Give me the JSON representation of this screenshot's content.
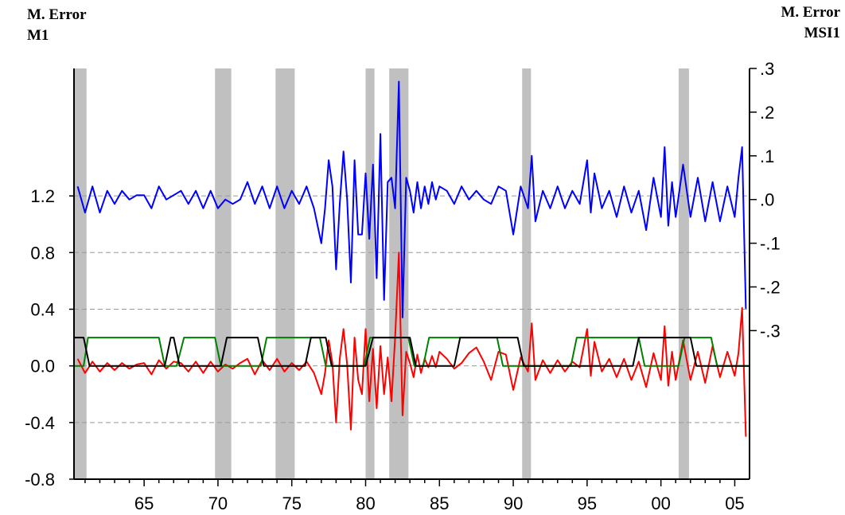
{
  "chart_data": {
    "type": "line",
    "left_axis_title": [
      "M. Error",
      "M1"
    ],
    "right_axis_title": [
      "M. Error",
      "MSI1"
    ],
    "x_ticks": [
      {
        "label": "65",
        "value": 1965
      },
      {
        "label": "70",
        "value": 1970
      },
      {
        "label": "75",
        "value": 1975
      },
      {
        "label": "80",
        "value": 1980
      },
      {
        "label": "85",
        "value": 1985
      },
      {
        "label": "90",
        "value": 1990
      },
      {
        "label": "95",
        "value": 1995
      },
      {
        "label": "00",
        "value": 2000
      },
      {
        "label": "05",
        "value": 2005
      }
    ],
    "xlim": [
      1960.25,
      2006.0
    ],
    "left_axis": {
      "ylim": [
        -0.8,
        2.1
      ],
      "tick_labels": [
        "1.2",
        "0.8",
        "0.4",
        "0.0",
        "-0.4",
        "-0.8"
      ],
      "tick_values": [
        1.2,
        0.8,
        0.4,
        0.0,
        -0.4,
        -0.8
      ]
    },
    "right_axis": {
      "ylim": [
        -0.64,
        0.3
      ],
      "tick_labels": [
        ".3",
        ".2",
        ".1",
        ".0",
        "-.1",
        "-.2",
        "-.3"
      ],
      "tick_values": [
        0.3,
        0.2,
        0.1,
        0.0,
        -0.1,
        -0.2,
        -0.3
      ]
    },
    "grid": "horizontal dashed at left axis ticks",
    "recession_bands": [
      [
        1960.3,
        1961.1
      ],
      [
        1969.8,
        1970.9
      ],
      [
        1973.9,
        1975.2
      ],
      [
        1980.0,
        1980.6
      ],
      [
        1981.6,
        1982.9
      ],
      [
        1990.6,
        1991.2
      ],
      [
        2001.2,
        2001.9
      ]
    ],
    "series": [
      {
        "axis": "right",
        "color": "#0000ff",
        "x": [
          1960.5,
          1961.0,
          1961.5,
          1962.0,
          1962.5,
          1963.0,
          1963.5,
          1964.0,
          1964.5,
          1965.0,
          1965.5,
          1966.0,
          1966.5,
          1967.0,
          1967.5,
          1968.0,
          1968.5,
          1969.0,
          1969.5,
          1970.0,
          1970.5,
          1971.0,
          1971.5,
          1972.0,
          1972.5,
          1973.0,
          1973.5,
          1974.0,
          1974.5,
          1975.0,
          1975.5,
          1976.0,
          1976.5,
          1977.0,
          1977.25,
          1977.5,
          1977.75,
          1978.0,
          1978.25,
          1978.5,
          1978.75,
          1979.0,
          1979.25,
          1979.5,
          1979.75,
          1980.0,
          1980.25,
          1980.5,
          1980.75,
          1981.0,
          1981.25,
          1981.5,
          1981.75,
          1982.0,
          1982.25,
          1982.5,
          1982.75,
          1983.0,
          1983.25,
          1983.5,
          1983.75,
          1984.0,
          1984.25,
          1984.5,
          1984.75,
          1985.0,
          1985.5,
          1986.0,
          1986.5,
          1987.0,
          1987.5,
          1988.0,
          1988.5,
          1989.0,
          1989.5,
          1990.0,
          1990.5,
          1991.0,
          1991.25,
          1991.5,
          1992.0,
          1992.5,
          1993.0,
          1993.5,
          1994.0,
          1994.5,
          1995.0,
          1995.25,
          1995.5,
          1996.0,
          1996.5,
          1997.0,
          1997.5,
          1998.0,
          1998.5,
          1999.0,
          1999.5,
          2000.0,
          2000.25,
          2000.5,
          2000.75,
          2001.0,
          2001.5,
          2002.0,
          2002.5,
          2003.0,
          2003.5,
          2004.0,
          2004.5,
          2005.0,
          2005.25,
          2005.5,
          2005.75
        ],
        "values": [
          0.03,
          -0.03,
          0.03,
          -0.03,
          0.02,
          -0.01,
          0.02,
          0.0,
          0.01,
          0.01,
          -0.02,
          0.03,
          0.0,
          0.01,
          0.02,
          -0.01,
          0.02,
          -0.02,
          0.02,
          -0.02,
          0.0,
          -0.01,
          0.0,
          0.04,
          -0.01,
          0.03,
          -0.02,
          0.03,
          -0.02,
          0.02,
          -0.01,
          0.03,
          -0.02,
          -0.1,
          -0.02,
          0.09,
          0.03,
          -0.16,
          -0.01,
          0.11,
          0.0,
          -0.19,
          0.09,
          -0.08,
          -0.08,
          0.06,
          -0.09,
          0.08,
          -0.18,
          0.15,
          -0.23,
          0.04,
          0.05,
          -0.02,
          0.27,
          -0.27,
          0.05,
          0.02,
          -0.03,
          0.04,
          -0.02,
          0.03,
          -0.01,
          0.04,
          0.0,
          0.03,
          0.02,
          -0.01,
          0.03,
          0.0,
          0.02,
          0.0,
          -0.01,
          0.03,
          0.02,
          -0.08,
          0.03,
          -0.02,
          0.1,
          -0.05,
          0.02,
          -0.02,
          0.03,
          -0.02,
          0.02,
          -0.01,
          0.09,
          -0.03,
          0.06,
          -0.02,
          0.02,
          -0.04,
          0.03,
          -0.03,
          0.02,
          -0.07,
          0.05,
          -0.04,
          0.12,
          -0.06,
          0.04,
          -0.04,
          0.08,
          -0.04,
          0.05,
          -0.05,
          0.04,
          -0.05,
          0.03,
          -0.04,
          0.05,
          0.12,
          -0.25
        ]
      },
      {
        "axis": "left",
        "color": "#ff0000",
        "x": [
          1960.5,
          1961.0,
          1961.5,
          1962.0,
          1962.5,
          1963.0,
          1963.5,
          1964.0,
          1964.5,
          1965.0,
          1965.5,
          1966.0,
          1966.5,
          1967.0,
          1967.5,
          1968.0,
          1968.5,
          1969.0,
          1969.5,
          1970.0,
          1970.5,
          1971.0,
          1971.5,
          1972.0,
          1972.5,
          1973.0,
          1973.5,
          1974.0,
          1974.5,
          1975.0,
          1975.5,
          1976.0,
          1976.5,
          1977.0,
          1977.25,
          1977.5,
          1977.75,
          1978.0,
          1978.25,
          1978.5,
          1978.75,
          1979.0,
          1979.25,
          1979.5,
          1979.75,
          1980.0,
          1980.25,
          1980.5,
          1980.75,
          1981.0,
          1981.25,
          1981.5,
          1981.75,
          1982.0,
          1982.25,
          1982.5,
          1982.75,
          1983.0,
          1983.25,
          1983.5,
          1983.75,
          1984.0,
          1984.25,
          1984.5,
          1984.75,
          1985.0,
          1985.5,
          1986.0,
          1986.5,
          1987.0,
          1987.5,
          1988.0,
          1988.5,
          1989.0,
          1989.5,
          1990.0,
          1990.5,
          1991.0,
          1991.25,
          1991.5,
          1992.0,
          1992.5,
          1993.0,
          1993.5,
          1994.0,
          1994.5,
          1995.0,
          1995.25,
          1995.5,
          1996.0,
          1996.5,
          1997.0,
          1997.5,
          1998.0,
          1998.5,
          1999.0,
          1999.5,
          2000.0,
          2000.25,
          2000.5,
          2000.75,
          2001.0,
          2001.5,
          2002.0,
          2002.5,
          2003.0,
          2003.5,
          2004.0,
          2004.5,
          2005.0,
          2005.25,
          2005.5,
          2005.75
        ],
        "values": [
          0.05,
          -0.05,
          0.03,
          -0.04,
          0.02,
          -0.03,
          0.02,
          -0.02,
          0.01,
          0.02,
          -0.06,
          0.04,
          -0.02,
          0.03,
          0.02,
          -0.04,
          0.03,
          -0.05,
          0.03,
          -0.04,
          0.01,
          -0.02,
          0.02,
          0.05,
          -0.06,
          0.04,
          -0.03,
          0.05,
          -0.04,
          0.02,
          -0.03,
          0.03,
          -0.05,
          -0.2,
          -0.05,
          0.18,
          0.02,
          -0.4,
          0.05,
          0.26,
          0.01,
          -0.45,
          0.2,
          -0.1,
          -0.2,
          0.26,
          -0.25,
          0.12,
          -0.3,
          0.14,
          -0.2,
          0.06,
          -0.25,
          0.2,
          0.8,
          -0.35,
          0.1,
          0.02,
          -0.08,
          0.08,
          -0.05,
          0.05,
          -0.01,
          0.07,
          -0.01,
          0.1,
          0.05,
          -0.02,
          0.02,
          0.09,
          0.13,
          0.03,
          -0.1,
          0.1,
          0.08,
          -0.17,
          0.06,
          -0.04,
          0.3,
          -0.1,
          0.04,
          -0.05,
          0.04,
          -0.04,
          0.03,
          -0.01,
          0.26,
          -0.07,
          0.17,
          -0.04,
          0.05,
          -0.08,
          0.05,
          -0.1,
          0.03,
          -0.15,
          0.09,
          -0.1,
          0.28,
          -0.14,
          0.1,
          -0.1,
          0.18,
          -0.1,
          0.1,
          -0.12,
          0.14,
          -0.08,
          0.1,
          -0.07,
          0.09,
          0.41,
          -0.5
        ]
      },
      {
        "axis": "left",
        "color": "#008000",
        "x": [
          1960.3,
          1960.9,
          1961.2,
          1966.0,
          1966.4,
          1967.2,
          1967.7,
          1969.8,
          1970.2,
          1972.9,
          1973.3,
          1976.9,
          1977.3,
          1979.9,
          1980.3,
          1982.9,
          1983.3,
          1983.9,
          1984.3,
          1988.9,
          1989.3,
          1993.9,
          1994.3,
          1998.5,
          1998.9,
          2001.2,
          2001.6,
          2003.4,
          2003.8,
          2006.0
        ],
        "values": [
          0.0,
          0.0,
          0.2,
          0.2,
          0.0,
          0.0,
          0.2,
          0.2,
          0.0,
          0.0,
          0.2,
          0.2,
          0.0,
          0.0,
          0.2,
          0.2,
          0.0,
          0.0,
          0.2,
          0.2,
          0.0,
          0.0,
          0.2,
          0.2,
          0.0,
          0.0,
          0.2,
          0.2,
          0.0,
          0.0
        ]
      },
      {
        "axis": "left",
        "color": "#000000",
        "x": [
          1960.3,
          1960.9,
          1961.3,
          1966.4,
          1966.8,
          1967.0,
          1967.4,
          1970.2,
          1970.6,
          1972.7,
          1973.1,
          1975.9,
          1976.3,
          1977.3,
          1977.7,
          1980.0,
          1980.5,
          1983.0,
          1983.4,
          1986.0,
          1986.4,
          1990.3,
          1990.7,
          1998.1,
          1998.5,
          2002.0,
          2002.4,
          2006.0
        ],
        "values": [
          0.2,
          0.2,
          0.0,
          0.0,
          0.2,
          0.2,
          0.0,
          0.0,
          0.2,
          0.2,
          0.0,
          0.0,
          0.2,
          0.2,
          0.0,
          0.0,
          0.2,
          0.2,
          0.0,
          0.0,
          0.2,
          0.2,
          0.0,
          0.0,
          0.2,
          0.2,
          0.0,
          0.0
        ]
      }
    ]
  }
}
